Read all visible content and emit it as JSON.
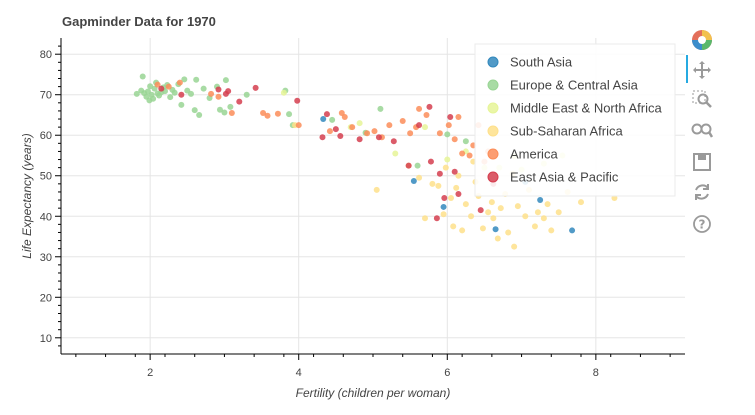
{
  "chart_data": {
    "type": "scatter",
    "title": "Gapminder Data for 1970",
    "xlabel": "Fertility (children per woman)",
    "ylabel": "Life Expectancy (years)",
    "xlim": [
      0.8,
      9.2
    ],
    "ylim": [
      6,
      84
    ],
    "xticks": [
      2,
      4,
      6,
      8
    ],
    "yticks": [
      10,
      20,
      30,
      40,
      50,
      60,
      70,
      80
    ],
    "grid": true,
    "legend_position": "top-right",
    "series": [
      {
        "name": "South Asia",
        "color": "#3288bd",
        "points": [
          [
            4.33,
            64.0
          ],
          [
            5.55,
            48.7
          ],
          [
            5.95,
            42.3
          ],
          [
            6.65,
            36.8
          ],
          [
            7.25,
            44.0
          ],
          [
            7.68,
            36.5
          ],
          [
            7.05,
            48.5
          ]
        ]
      },
      {
        "name": "Europe & Central Asia",
        "color": "#99d594",
        "points": [
          [
            1.82,
            70.2
          ],
          [
            1.88,
            71.0
          ],
          [
            1.9,
            74.5
          ],
          [
            1.92,
            70.4
          ],
          [
            1.95,
            69.5
          ],
          [
            1.97,
            70.8
          ],
          [
            1.99,
            68.6
          ],
          [
            2.0,
            72.1
          ],
          [
            2.02,
            70.0
          ],
          [
            2.04,
            69.0
          ],
          [
            2.06,
            71.5
          ],
          [
            2.08,
            73.0
          ],
          [
            2.1,
            70.3
          ],
          [
            2.12,
            69.8
          ],
          [
            2.15,
            70.6
          ],
          [
            2.18,
            71.8
          ],
          [
            2.2,
            70.9
          ],
          [
            2.23,
            72.4
          ],
          [
            2.27,
            69.4
          ],
          [
            2.3,
            71.2
          ],
          [
            2.33,
            70.5
          ],
          [
            2.38,
            72.6
          ],
          [
            2.42,
            67.5
          ],
          [
            2.46,
            73.8
          ],
          [
            2.5,
            71.0
          ],
          [
            2.55,
            70.2
          ],
          [
            2.6,
            66.2
          ],
          [
            2.62,
            73.7
          ],
          [
            2.66,
            65.0
          ],
          [
            2.72,
            71.5
          ],
          [
            2.8,
            69.2
          ],
          [
            2.9,
            72.0
          ],
          [
            2.94,
            66.3
          ],
          [
            3.02,
            73.6
          ],
          [
            3.08,
            67.0
          ],
          [
            3.0,
            65.6
          ],
          [
            3.3,
            70.0
          ],
          [
            3.82,
            71.0
          ],
          [
            3.87,
            65.2
          ],
          [
            3.92,
            62.5
          ],
          [
            4.45,
            63.8
          ],
          [
            4.9,
            60.6
          ],
          [
            5.1,
            66.5
          ],
          [
            5.6,
            52.5
          ],
          [
            6.0,
            60.2
          ],
          [
            6.25,
            58.5
          ]
        ]
      },
      {
        "name": "Middle East & North Africa",
        "color": "#e6f598",
        "points": [
          [
            3.8,
            70.5
          ],
          [
            4.7,
            62.0
          ],
          [
            4.82,
            63.0
          ],
          [
            5.3,
            55.5
          ],
          [
            5.7,
            62.0
          ],
          [
            6.0,
            54.0
          ],
          [
            6.25,
            56.0
          ],
          [
            6.7,
            52.0
          ],
          [
            6.9,
            54.8
          ],
          [
            7.0,
            51.5
          ],
          [
            7.3,
            53.0
          ],
          [
            7.55,
            55.0
          ],
          [
            6.5,
            52.0
          ]
        ]
      },
      {
        "name": "Sub-Saharan Africa",
        "color": "#fee08b",
        "points": [
          [
            3.95,
            62.5
          ],
          [
            5.05,
            46.5
          ],
          [
            5.48,
            52.5
          ],
          [
            5.62,
            49.5
          ],
          [
            5.7,
            39.5
          ],
          [
            5.8,
            48.0
          ],
          [
            5.88,
            47.5
          ],
          [
            5.95,
            40.5
          ],
          [
            5.98,
            52.0
          ],
          [
            6.05,
            44.5
          ],
          [
            6.08,
            37.5
          ],
          [
            6.12,
            47.0
          ],
          [
            6.15,
            50.0
          ],
          [
            6.2,
            36.5
          ],
          [
            6.25,
            43.0
          ],
          [
            6.32,
            40.0
          ],
          [
            6.38,
            48.5
          ],
          [
            6.42,
            45.0
          ],
          [
            6.48,
            37.0
          ],
          [
            6.55,
            41.0
          ],
          [
            6.6,
            43.5
          ],
          [
            6.62,
            39.5
          ],
          [
            6.68,
            34.5
          ],
          [
            6.72,
            42.0
          ],
          [
            6.78,
            45.5
          ],
          [
            6.82,
            36.0
          ],
          [
            6.9,
            32.5
          ],
          [
            6.95,
            42.5
          ],
          [
            7.05,
            40.0
          ],
          [
            7.1,
            46.5
          ],
          [
            7.18,
            37.5
          ],
          [
            7.22,
            41.0
          ],
          [
            7.3,
            39.5
          ],
          [
            7.35,
            43.0
          ],
          [
            7.4,
            36.5
          ],
          [
            7.5,
            41.0
          ],
          [
            7.62,
            46.0
          ],
          [
            7.8,
            43.5
          ],
          [
            8.25,
            44.5
          ],
          [
            6.88,
            50.5
          ],
          [
            6.35,
            53.5
          ]
        ]
      },
      {
        "name": "America",
        "color": "#fc8d59",
        "points": [
          [
            2.1,
            72.5
          ],
          [
            2.25,
            72.0
          ],
          [
            2.4,
            73.0
          ],
          [
            2.82,
            70.2
          ],
          [
            2.92,
            69.5
          ],
          [
            3.1,
            65.5
          ],
          [
            3.52,
            65.5
          ],
          [
            3.58,
            64.8
          ],
          [
            3.72,
            65.3
          ],
          [
            4.0,
            62.5
          ],
          [
            4.42,
            61.0
          ],
          [
            4.58,
            65.5
          ],
          [
            4.62,
            64.5
          ],
          [
            4.72,
            62.0
          ],
          [
            4.92,
            60.5
          ],
          [
            5.02,
            61.0
          ],
          [
            5.12,
            59.5
          ],
          [
            5.22,
            62.5
          ],
          [
            5.4,
            63.5
          ],
          [
            5.5,
            60.5
          ],
          [
            5.58,
            62.0
          ],
          [
            5.62,
            66.5
          ],
          [
            5.72,
            65.0
          ],
          [
            5.9,
            60.5
          ],
          [
            6.02,
            62.5
          ],
          [
            6.1,
            59.0
          ],
          [
            6.15,
            64.5
          ],
          [
            6.2,
            55.5
          ],
          [
            6.3,
            55.0
          ],
          [
            6.35,
            57.5
          ],
          [
            6.42,
            62.5
          ],
          [
            6.5,
            53.5
          ],
          [
            6.55,
            56.0
          ]
        ]
      },
      {
        "name": "East Asia & Pacific",
        "color": "#d53e4f",
        "points": [
          [
            2.15,
            71.5
          ],
          [
            2.42,
            70.0
          ],
          [
            2.92,
            71.3
          ],
          [
            3.02,
            70.2
          ],
          [
            3.05,
            70.9
          ],
          [
            3.2,
            68.3
          ],
          [
            3.42,
            71.7
          ],
          [
            3.98,
            68.5
          ],
          [
            4.32,
            59.5
          ],
          [
            4.38,
            65.2
          ],
          [
            4.5,
            61.5
          ],
          [
            4.56,
            59.8
          ],
          [
            4.82,
            59.0
          ],
          [
            5.08,
            59.5
          ],
          [
            5.28,
            58.5
          ],
          [
            5.48,
            52.5
          ],
          [
            5.62,
            62.5
          ],
          [
            5.76,
            67.0
          ],
          [
            5.78,
            53.5
          ],
          [
            5.9,
            50.5
          ],
          [
            5.96,
            44.5
          ],
          [
            6.04,
            64.5
          ],
          [
            6.15,
            45.5
          ],
          [
            5.86,
            39.5
          ],
          [
            6.45,
            41.5
          ],
          [
            6.1,
            51.0
          ],
          [
            6.62,
            48.0
          ]
        ]
      }
    ]
  }
}
